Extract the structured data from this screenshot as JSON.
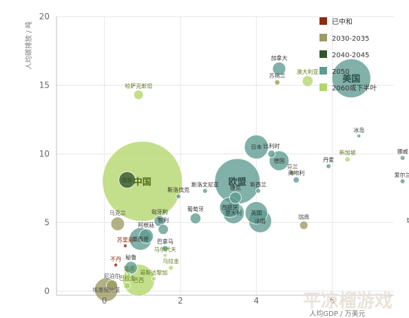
{
  "chart_data": {
    "type": "scatter",
    "subtype": "bubble",
    "xlabel": "人均GDP / 万美元",
    "ylabel": "人均碳排放 / 吨",
    "xlim": [
      -0.5,
      8.2
    ],
    "ylim": [
      -0.3,
      20
    ],
    "xticks": [
      "0",
      "2",
      "4",
      "6"
    ],
    "yticks": [
      "0",
      "5",
      "10",
      "15",
      "20"
    ],
    "x_tick_values": [
      0,
      2,
      4,
      6
    ],
    "y_tick_values": [
      0,
      5,
      10,
      15,
      20
    ],
    "grid": true,
    "legend_position": "top-right",
    "legend": [
      {
        "key": "peaked",
        "label": "已中和",
        "color": "#8b2e0f"
      },
      {
        "key": "y2030",
        "label": "2030-2035",
        "color": "#9c9a62"
      },
      {
        "key": "y2040",
        "label": "2040-2045",
        "color": "#34552e"
      },
      {
        "key": "y2050",
        "label": "2050",
        "color": "#5e9b91"
      },
      {
        "key": "y2060",
        "label": "2060或下半叶",
        "color": "#b3d66a"
      }
    ],
    "points": [
      {
        "label": "中国",
        "x": 1.0,
        "y": 8.0,
        "size": 1400,
        "group": "y2060",
        "big": true
      },
      {
        "label": "欧盟",
        "x": 3.5,
        "y": 8.0,
        "size": 450,
        "group": "y2050",
        "big": true
      },
      {
        "label": "美国",
        "x": 6.5,
        "y": 15.5,
        "size": 330,
        "group": "y2050",
        "big": true
      },
      {
        "label": "南非",
        "x": 0.6,
        "y": 8.1,
        "size": 60,
        "group": "y2040"
      },
      {
        "label": "日本",
        "x": 4.0,
        "y": 10.5,
        "size": 125,
        "group": "y2050"
      },
      {
        "label": "比利时",
        "x": 4.4,
        "y": 10.0,
        "size": 12,
        "group": "y2050"
      },
      {
        "label": "德国",
        "x": 4.6,
        "y": 9.5,
        "size": 85,
        "group": "y2050"
      },
      {
        "label": "加拿大",
        "x": 4.6,
        "y": 16.2,
        "size": 38,
        "group": "y2050"
      },
      {
        "label": "苏格兰",
        "x": 4.55,
        "y": 15.2,
        "size": 6,
        "group": "y2030"
      },
      {
        "label": "澳大利亚",
        "x": 5.35,
        "y": 15.3,
        "size": 25,
        "group": "y2060"
      },
      {
        "label": "哈萨克斯坦",
        "x": 0.9,
        "y": 14.3,
        "size": 20,
        "group": "y2060"
      },
      {
        "label": "冰岛",
        "x": 6.7,
        "y": 11.3,
        "size": 3,
        "group": "y2050"
      },
      {
        "label": "挪威",
        "x": 7.85,
        "y": 9.7,
        "size": 5,
        "group": "y2050"
      },
      {
        "label": "新加坡",
        "x": 6.4,
        "y": 9.6,
        "size": 6,
        "group": "y2060"
      },
      {
        "label": "丹麦",
        "x": 5.9,
        "y": 9.1,
        "size": 5,
        "group": "y2050"
      },
      {
        "label": "芬兰",
        "x": 4.95,
        "y": 8.6,
        "size": 5,
        "group": "y2030"
      },
      {
        "label": "奥地利",
        "x": 5.05,
        "y": 8.1,
        "size": 8,
        "group": "y2050"
      },
      {
        "label": "爱尔兰",
        "x": 7.85,
        "y": 8.0,
        "size": 5,
        "group": "y2050"
      },
      {
        "label": "斯洛文尼亚",
        "x": 2.65,
        "y": 7.3,
        "size": 5,
        "group": "y2050"
      },
      {
        "label": "新西兰",
        "x": 4.05,
        "y": 7.3,
        "size": 5,
        "group": "y2050"
      },
      {
        "label": "斯洛伐克",
        "x": 1.95,
        "y": 6.9,
        "size": 5,
        "group": "y2050"
      },
      {
        "label": "捷克",
        "x": 3.45,
        "y": 6.8,
        "size": 30,
        "group": "y2050"
      },
      {
        "label": "西班牙",
        "x": 3.3,
        "y": 6.1,
        "size": 90,
        "group": "y2050"
      },
      {
        "label": "英国",
        "x": 4.0,
        "y": 5.7,
        "size": 110,
        "group": "y2050"
      },
      {
        "label": "葡萄牙",
        "x": 2.4,
        "y": 5.3,
        "size": 25,
        "group": "y2050"
      },
      {
        "label": "意大利",
        "x": 3.4,
        "y": 5.7,
        "size": 100,
        "group": "y2050"
      },
      {
        "label": "法国",
        "x": 4.1,
        "y": 5.1,
        "size": 115,
        "group": "y2050"
      },
      {
        "label": "瑞典",
        "x": 5.25,
        "y": 4.8,
        "size": 15,
        "group": "y2030"
      },
      {
        "label": "瑞士",
        "x": 8.1,
        "y": 4.6,
        "size": 10,
        "group": "y2050"
      },
      {
        "label": "匈牙利",
        "x": 1.45,
        "y": 5.1,
        "size": 25,
        "group": "y2050"
      },
      {
        "label": "乌克兰",
        "x": 0.35,
        "y": 4.9,
        "size": 40,
        "group": "y2030"
      },
      {
        "label": "阿根廷",
        "x": 1.1,
        "y": 4.0,
        "size": 45,
        "group": "y2050"
      },
      {
        "label": "智利",
        "x": 1.55,
        "y": 4.5,
        "size": 22,
        "group": "y2050"
      },
      {
        "label": "墨西哥",
        "x": 0.95,
        "y": 3.8,
        "size": 110,
        "group": "y2050"
      },
      {
        "label": "苏里南",
        "x": 0.55,
        "y": 3.3,
        "size": 3,
        "group": "peaked"
      },
      {
        "label": "巴拿马",
        "x": 1.6,
        "y": 3.1,
        "size": 8,
        "group": "y2050"
      },
      {
        "label": "马尔代夫",
        "x": 1.6,
        "y": 2.6,
        "size": 3,
        "group": "y2060"
      },
      {
        "label": "不丹",
        "x": 0.3,
        "y": 1.9,
        "size": 3,
        "group": "peaked"
      },
      {
        "label": "秘鲁",
        "x": 0.7,
        "y": 1.7,
        "size": 35,
        "group": "y2050"
      },
      {
        "label": "乌拉圭",
        "x": 1.75,
        "y": 1.7,
        "size": 5,
        "group": "y2060"
      },
      {
        "label": "斐济",
        "x": 0.65,
        "y": 1.2,
        "size": 3,
        "group": "y2060"
      },
      {
        "label": "巴西",
        "x": 0.9,
        "y": 0.8,
        "size": 220,
        "group": "y2060"
      },
      {
        "label": "哥斯达黎加",
        "x": 1.3,
        "y": 0.9,
        "size": 4,
        "group": "y2060"
      },
      {
        "label": "尼泊尔",
        "x": 0.2,
        "y": 0.4,
        "size": 28,
        "group": "y2030"
      },
      {
        "label": "巴拉圭",
        "x": 0.6,
        "y": 0.4,
        "size": 10,
        "group": "y2060"
      },
      {
        "label": "埃塞俄比亚",
        "x": 0.05,
        "y": 0.1,
        "size": 120,
        "group": "y2030"
      }
    ]
  },
  "watermark": "平凉榴游戏"
}
